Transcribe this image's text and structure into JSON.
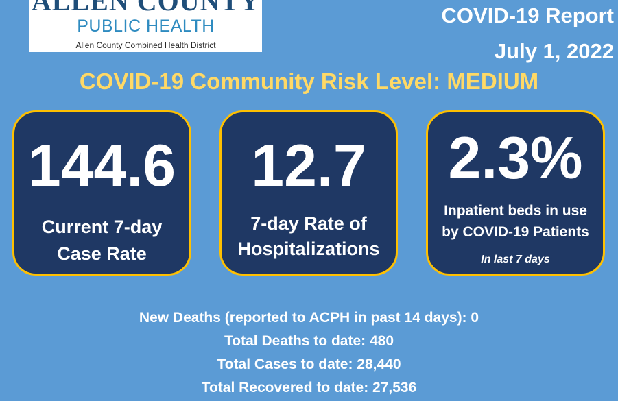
{
  "logo": {
    "name": "ALLEN COUNTY",
    "subtitle": "PUBLIC HEALTH",
    "tagline": "Allen County Combined Health District"
  },
  "report": {
    "title": "COVID-19 Report",
    "date": "July 1, 2022"
  },
  "risk_level": "COVID-19 Community Risk Level: MEDIUM",
  "cards": [
    {
      "value": "144.6",
      "label_line1": "Current 7-day",
      "label_line2": "Case Rate"
    },
    {
      "value": "12.7",
      "label_line1": "7-day Rate of",
      "label_line2": "Hospitalizations"
    },
    {
      "value": "2.3%",
      "label_line1": "Inpatient beds in use",
      "label_line2": "by COVID-19 Patients",
      "note": "In last  7 days"
    }
  ],
  "stats": [
    "New Deaths (reported to ACPH in past 14 days): 0",
    "Total Deaths to date: 480",
    "Total Cases to date: 28,440",
    "Total Recovered to date: 27,536"
  ],
  "colors": {
    "background": "#5b9bd5",
    "card_fill": "#1f3864",
    "card_border": "#ffc000",
    "risk_text": "#ffd966"
  }
}
